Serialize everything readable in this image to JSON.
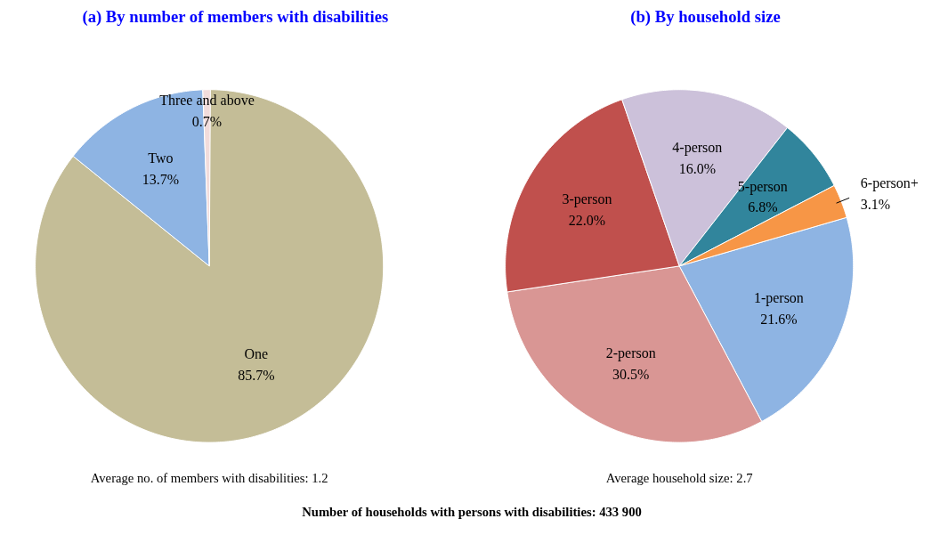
{
  "chart_data": [
    {
      "type": "pie",
      "title": "(a) By number of members with disabilities",
      "categories": [
        "One",
        "Two",
        "Three and above"
      ],
      "values": [
        85.7,
        13.7,
        0.7
      ],
      "value_labels": [
        "85.7%",
        "13.7%",
        "0.7%"
      ],
      "colors": [
        "#c4bd97",
        "#8eb4e3",
        "#f2dcdb"
      ],
      "annotations": [
        "Average no. of members with disabilities: 1.2"
      ]
    },
    {
      "type": "pie",
      "title": "(b) By household size",
      "categories": [
        "1-person",
        "2-person",
        "3-person",
        "4-person",
        "5-person",
        "6-person+"
      ],
      "values": [
        21.6,
        30.5,
        22.0,
        16.0,
        6.8,
        3.1
      ],
      "value_labels": [
        "21.6%",
        "30.5%",
        "22.0%",
        "16.0%",
        "6.8%",
        "3.1%"
      ],
      "colors": [
        "#8eb4e3",
        "#d99694",
        "#c0504d",
        "#ccc1da",
        "#31859c",
        "#f79646"
      ],
      "annotations": [
        "Average household size: 2.7",
        "Number of households with persons with disabilities: 433 900"
      ]
    }
  ]
}
